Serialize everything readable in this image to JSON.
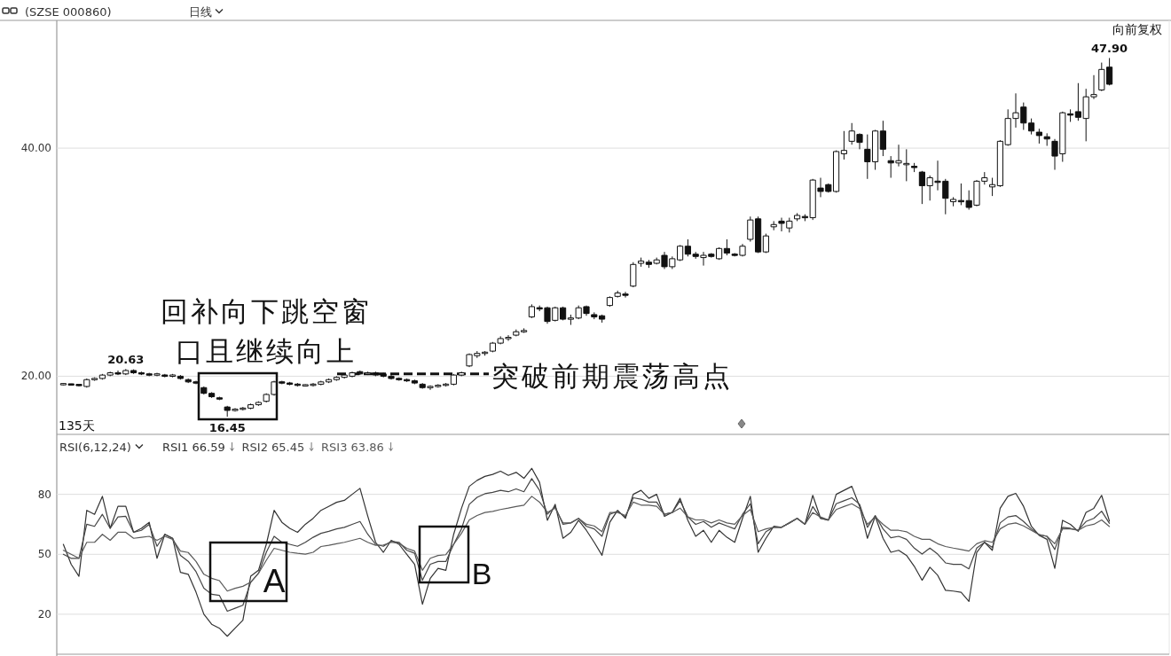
{
  "chart_data": [
    {
      "type": "candlestick",
      "title": "(SZSE 000860)",
      "subtitle": "日线",
      "categories": [
        null,
        null,
        null,
        null,
        null,
        null,
        null,
        null,
        null,
        null,
        null,
        null,
        null,
        null,
        null,
        null,
        null,
        null,
        null,
        null,
        null,
        null,
        null,
        null,
        null,
        null,
        null,
        null,
        null,
        null,
        null,
        null,
        null,
        null,
        null,
        null,
        null,
        null,
        null,
        null,
        null,
        null,
        null,
        null,
        null,
        null,
        null,
        null,
        null,
        null,
        null,
        null,
        null,
        null,
        null,
        null,
        null,
        null,
        null,
        null,
        null,
        null,
        null,
        null,
        null,
        null,
        null,
        null,
        null,
        null,
        null,
        null,
        null,
        null,
        null,
        null,
        null,
        null,
        null,
        null,
        null,
        null,
        null,
        null,
        null,
        null,
        null,
        null,
        null,
        null,
        null,
        null,
        null,
        null,
        null,
        null,
        null,
        null,
        null,
        null,
        null,
        null,
        null,
        null,
        null,
        null,
        null,
        null,
        null,
        null,
        null,
        null,
        null,
        null,
        null,
        null,
        null,
        null,
        null,
        null,
        null,
        null,
        null,
        null,
        null,
        null,
        null,
        null,
        null,
        null,
        null,
        null,
        null,
        null,
        null
      ],
      "ohlc": [
        [
          19.3,
          19.4,
          19.2,
          19.3
        ],
        [
          19.3,
          19.35,
          19.2,
          19.25
        ],
        [
          19.25,
          19.3,
          19.1,
          19.2
        ],
        [
          19.1,
          19.8,
          19.0,
          19.7
        ],
        [
          19.7,
          19.9,
          19.6,
          19.8
        ],
        [
          19.8,
          20.2,
          19.7,
          20.1
        ],
        [
          20.1,
          20.4,
          20.0,
          20.3
        ],
        [
          20.3,
          20.5,
          20.1,
          20.2
        ],
        [
          20.2,
          20.63,
          20.1,
          20.5
        ],
        [
          20.5,
          20.6,
          20.2,
          20.3
        ],
        [
          20.3,
          20.4,
          20.1,
          20.2
        ],
        [
          20.2,
          20.3,
          20.0,
          20.1
        ],
        [
          20.1,
          20.3,
          20.0,
          20.2
        ],
        [
          20.1,
          20.2,
          19.9,
          20.0
        ],
        [
          20.0,
          20.2,
          19.9,
          20.1
        ],
        [
          20.0,
          20.1,
          19.7,
          19.8
        ],
        [
          19.7,
          19.8,
          19.4,
          19.5
        ],
        [
          19.5,
          19.6,
          19.3,
          19.4
        ],
        [
          19.0,
          19.1,
          18.4,
          18.5
        ],
        [
          18.5,
          18.6,
          18.1,
          18.2
        ],
        [
          18.1,
          18.2,
          17.9,
          18.0
        ],
        [
          17.3,
          17.4,
          16.45,
          17.0
        ],
        [
          17.0,
          17.2,
          16.9,
          17.1
        ],
        [
          17.1,
          17.3,
          17.0,
          17.2
        ],
        [
          17.2,
          17.6,
          17.1,
          17.5
        ],
        [
          17.5,
          17.8,
          17.4,
          17.7
        ],
        [
          17.8,
          18.5,
          17.7,
          18.4
        ],
        [
          18.4,
          19.6,
          18.3,
          19.5
        ],
        [
          19.5,
          19.6,
          19.3,
          19.4
        ],
        [
          19.4,
          19.5,
          19.2,
          19.3
        ],
        [
          19.3,
          19.4,
          19.1,
          19.2
        ],
        [
          19.2,
          19.3,
          19.1,
          19.2
        ],
        [
          19.2,
          19.4,
          19.1,
          19.3
        ],
        [
          19.3,
          19.6,
          19.2,
          19.5
        ],
        [
          19.5,
          19.8,
          19.4,
          19.7
        ],
        [
          19.7,
          20.0,
          19.6,
          19.9
        ],
        [
          19.9,
          20.2,
          19.8,
          20.1
        ],
        [
          20.0,
          20.4,
          19.9,
          20.3
        ],
        [
          20.4,
          20.5,
          20.1,
          20.2
        ],
        [
          20.2,
          20.4,
          20.1,
          20.3
        ],
        [
          20.3,
          20.4,
          20.0,
          20.1
        ],
        [
          20.2,
          20.3,
          19.9,
          20.0
        ],
        [
          20.0,
          20.1,
          19.7,
          19.8
        ],
        [
          19.8,
          19.9,
          19.6,
          19.7
        ],
        [
          19.7,
          19.8,
          19.5,
          19.6
        ],
        [
          19.6,
          19.7,
          19.3,
          19.4
        ],
        [
          19.3,
          19.4,
          18.9,
          19.0
        ],
        [
          19.0,
          19.2,
          18.8,
          19.1
        ],
        [
          19.1,
          19.3,
          19.0,
          19.2
        ],
        [
          19.2,
          19.4,
          19.1,
          19.3
        ],
        [
          19.3,
          20.2,
          19.2,
          20.1
        ],
        [
          20.1,
          20.4,
          20.0,
          20.3
        ],
        [
          20.9,
          22.0,
          20.8,
          21.9
        ],
        [
          21.8,
          22.2,
          21.6,
          22.0
        ],
        [
          22.0,
          22.2,
          21.8,
          22.1
        ],
        [
          22.2,
          23.0,
          22.1,
          22.9
        ],
        [
          22.9,
          23.5,
          22.8,
          23.3
        ],
        [
          23.3,
          23.6,
          23.1,
          23.4
        ],
        [
          23.6,
          24.1,
          23.5,
          23.9
        ],
        [
          23.9,
          24.2,
          23.8,
          24.0
        ],
        [
          25.2,
          26.3,
          25.1,
          26.1
        ],
        [
          26.0,
          26.2,
          25.7,
          25.9
        ],
        [
          26.0,
          26.1,
          24.6,
          24.8
        ],
        [
          24.9,
          26.1,
          24.8,
          26.0
        ],
        [
          26.0,
          26.1,
          24.9,
          25.0
        ],
        [
          25.0,
          25.4,
          24.5,
          25.1
        ],
        [
          25.1,
          26.2,
          25.0,
          26.0
        ],
        [
          26.1,
          26.2,
          25.3,
          25.5
        ],
        [
          25.4,
          25.6,
          25.0,
          25.2
        ],
        [
          25.3,
          25.4,
          24.7,
          25.0
        ],
        [
          26.2,
          27.0,
          26.1,
          26.9
        ],
        [
          27.0,
          27.5,
          26.9,
          27.3
        ],
        [
          27.2,
          27.4,
          26.9,
          27.1
        ],
        [
          27.9,
          30.0,
          27.8,
          29.8
        ],
        [
          29.9,
          30.4,
          29.6,
          30.1
        ],
        [
          30.0,
          30.2,
          29.5,
          29.8
        ],
        [
          29.9,
          30.4,
          29.8,
          30.2
        ],
        [
          30.6,
          30.9,
          29.4,
          29.6
        ],
        [
          29.6,
          30.5,
          29.4,
          30.3
        ],
        [
          30.2,
          31.5,
          30.1,
          31.4
        ],
        [
          31.4,
          32.0,
          30.5,
          30.7
        ],
        [
          30.7,
          30.9,
          30.3,
          30.5
        ],
        [
          30.4,
          30.9,
          29.7,
          30.6
        ],
        [
          30.7,
          30.8,
          30.4,
          30.5
        ],
        [
          30.3,
          31.3,
          30.2,
          31.2
        ],
        [
          31.2,
          32.0,
          30.6,
          30.8
        ],
        [
          30.7,
          30.8,
          30.5,
          30.6
        ],
        [
          30.6,
          31.6,
          30.5,
          31.4
        ],
        [
          32.0,
          34.0,
          31.8,
          33.7
        ],
        [
          33.8,
          34.0,
          30.8,
          30.9
        ],
        [
          30.9,
          32.5,
          30.8,
          32.3
        ],
        [
          33.1,
          33.6,
          32.8,
          33.3
        ],
        [
          33.6,
          33.9,
          32.7,
          33.4
        ],
        [
          33.0,
          33.9,
          32.6,
          33.6
        ],
        [
          33.8,
          34.3,
          33.6,
          34.1
        ],
        [
          34.0,
          34.2,
          33.6,
          33.9
        ],
        [
          33.9,
          37.3,
          33.7,
          37.2
        ],
        [
          36.5,
          37.4,
          35.7,
          36.2
        ],
        [
          36.8,
          36.9,
          36.1,
          36.2
        ],
        [
          36.2,
          39.8,
          36.1,
          39.7
        ],
        [
          39.5,
          41.5,
          39.0,
          39.8
        ],
        [
          40.6,
          42.2,
          40.3,
          41.5
        ],
        [
          41.2,
          41.3,
          39.9,
          40.5
        ],
        [
          39.9,
          41.2,
          37.3,
          38.8
        ],
        [
          38.8,
          41.6,
          38.1,
          41.5
        ],
        [
          41.5,
          42.4,
          39.3,
          39.9
        ],
        [
          38.9,
          39.3,
          37.4,
          38.7
        ],
        [
          38.7,
          40.3,
          38.4,
          38.9
        ],
        [
          38.6,
          39.9,
          37.1,
          38.6
        ],
        [
          38.4,
          38.7,
          37.9,
          38.3
        ],
        [
          37.9,
          38.0,
          35.1,
          36.7
        ],
        [
          36.7,
          37.6,
          35.4,
          37.4
        ],
        [
          37.1,
          38.9,
          36.3,
          37.0
        ],
        [
          37.1,
          37.3,
          34.2,
          35.6
        ],
        [
          35.3,
          35.7,
          34.9,
          35.5
        ],
        [
          35.4,
          36.9,
          35.0,
          35.3
        ],
        [
          35.4,
          36.3,
          34.6,
          34.8
        ],
        [
          35.0,
          37.2,
          34.9,
          37.1
        ],
        [
          37.1,
          37.9,
          36.8,
          37.4
        ],
        [
          36.6,
          37.4,
          35.8,
          36.8
        ],
        [
          36.7,
          40.7,
          36.6,
          40.6
        ],
        [
          40.3,
          43.4,
          40.2,
          42.6
        ],
        [
          42.6,
          44.8,
          41.8,
          43.1
        ],
        [
          43.6,
          44.0,
          41.6,
          42.2
        ],
        [
          42.2,
          42.6,
          41.2,
          41.5
        ],
        [
          41.4,
          41.7,
          40.4,
          41.1
        ],
        [
          41.0,
          41.3,
          40.2,
          40.8
        ],
        [
          40.6,
          40.8,
          38.1,
          39.3
        ],
        [
          39.5,
          43.2,
          38.8,
          43.1
        ],
        [
          43.0,
          43.4,
          42.3,
          42.9
        ],
        [
          43.2,
          45.7,
          42.4,
          42.7
        ],
        [
          42.6,
          45.2,
          40.6,
          44.5
        ],
        [
          44.5,
          46.4,
          44.3,
          44.7
        ],
        [
          45.1,
          47.5,
          45.0,
          46.9
        ],
        [
          47.1,
          47.9,
          45.5,
          45.6
        ]
      ],
      "color": "#111111",
      "ylim": [
        14.9,
        51.2
      ],
      "yticks": [
        {
          "value": 20,
          "label": "20.00"
        },
        {
          "value": 40,
          "label": "40.00"
        }
      ],
      "grid": "y",
      "annotations": [
        {
          "text": "20.63",
          "y": 20.63
        },
        {
          "text": "16.45",
          "y": 16.45
        },
        {
          "text": "47.90",
          "y": 47.9
        },
        "135天",
        "向前复权",
        "回补向下跳空窗口且继续向上"
      ],
      "ref_lines": [
        {
          "axis": "y",
          "value": 20.2,
          "label": "突破前期震荡高点",
          "line_style": "dashed",
          "color": "#111111"
        }
      ]
    },
    {
      "type": "line",
      "title": "RSI(6,12,24)",
      "categories": [
        null,
        null,
        null,
        null,
        null,
        null,
        null,
        null,
        null,
        null,
        null,
        null,
        null,
        null,
        null,
        null,
        null,
        null,
        null,
        null,
        null,
        null,
        null,
        null,
        null,
        null,
        null,
        null,
        null,
        null,
        null,
        null,
        null,
        null,
        null,
        null,
        null,
        null,
        null,
        null,
        null,
        null,
        null,
        null,
        null,
        null,
        null,
        null,
        null,
        null,
        null,
        null,
        null,
        null,
        null,
        null,
        null,
        null,
        null,
        null,
        null,
        null,
        null,
        null,
        null,
        null,
        null,
        null,
        null,
        null,
        null,
        null,
        null,
        null,
        null,
        null,
        null,
        null,
        null,
        null,
        null,
        null,
        null,
        null,
        null,
        null,
        null,
        null,
        null,
        null,
        null,
        null,
        null,
        null,
        null,
        null,
        null,
        null,
        null,
        null,
        null,
        null,
        null,
        null,
        null,
        null,
        null,
        null,
        null,
        null,
        null,
        null,
        null,
        null,
        null,
        null,
        null,
        null,
        null,
        null,
        null,
        null,
        null,
        null,
        null,
        null,
        null,
        null,
        null,
        null,
        null,
        null,
        null,
        null,
        null
      ],
      "series": [
        {
          "name": "RSI1 66.59",
          "color": "#333333",
          "values": [
            55,
            45,
            39,
            72,
            70,
            79,
            63,
            74,
            74,
            61,
            63,
            66,
            48,
            60,
            58,
            41,
            40,
            31,
            20,
            15,
            13,
            9,
            13,
            17,
            39,
            42,
            55,
            72,
            66,
            63,
            61,
            65,
            68,
            72,
            74,
            76,
            77,
            80,
            83,
            69,
            56,
            51,
            57,
            55,
            50,
            45,
            25,
            38,
            43,
            42,
            60,
            73,
            84,
            87,
            89,
            90,
            91.6,
            89.5,
            91,
            88,
            93,
            86,
            67,
            75,
            58,
            61,
            67,
            62,
            56,
            49.5,
            66,
            72,
            68,
            80,
            82,
            78,
            80,
            69,
            71,
            78,
            67,
            59,
            62,
            56,
            62,
            58.5,
            56,
            68,
            79,
            51,
            58,
            64,
            63.5,
            65.7,
            68,
            65,
            79.5,
            68,
            67,
            80,
            82,
            84,
            74,
            58,
            69,
            58,
            51,
            52,
            49.5,
            44,
            37,
            43.5,
            39.5,
            32,
            31.6,
            31,
            26.4,
            51,
            56,
            52,
            73,
            79,
            80.5,
            74,
            64,
            59.5,
            57.5,
            43,
            67,
            65,
            61.5,
            71,
            73,
            79.5,
            66.6
          ]
        },
        {
          "name": "RSI2 65.45",
          "color": "#444444",
          "values": [
            50,
            48,
            48,
            65,
            64,
            70,
            63,
            68.7,
            69,
            61,
            62,
            65,
            54,
            60,
            58,
            49.5,
            46.5,
            41.3,
            33,
            30,
            29.4,
            21.5,
            23,
            24.5,
            36,
            40.5,
            51,
            59,
            56,
            55,
            54,
            56,
            58.5,
            60.5,
            61.5,
            62.7,
            63.5,
            65,
            66.4,
            60,
            55,
            54,
            56.5,
            56,
            52,
            50.5,
            37,
            45,
            46.4,
            46.4,
            55,
            62.7,
            75,
            78.5,
            80.3,
            81,
            82,
            81.3,
            82.7,
            81.3,
            87.9,
            82,
            70,
            73.9,
            65,
            65.7,
            68,
            64,
            62.7,
            59,
            70,
            71.6,
            68.7,
            78.3,
            77.6,
            76.1,
            76.1,
            70,
            70.9,
            76.8,
            68.7,
            65,
            66.4,
            63.5,
            65.7,
            64.2,
            62.7,
            70,
            75.3,
            55.3,
            61.3,
            63.5,
            63.5,
            65.7,
            68,
            65,
            73.9,
            68,
            67.2,
            75.3,
            76.8,
            78.3,
            75,
            63.5,
            69.4,
            62.7,
            58.3,
            59,
            57.5,
            53.1,
            50.1,
            53.1,
            50.1,
            45.7,
            45,
            45,
            42.7,
            53.1,
            56,
            53.5,
            65.7,
            68.7,
            69.4,
            66.4,
            62.7,
            59.8,
            59,
            52.4,
            63.5,
            63,
            62,
            66.4,
            68,
            71.6,
            65.5
          ]
        },
        {
          "name": "RSI3 63.86",
          "color": "#5a5a5a",
          "values": [
            52,
            50,
            48,
            56,
            56,
            60,
            57,
            61,
            61,
            58,
            58.5,
            59,
            57,
            59,
            57.5,
            51.6,
            50.9,
            46.4,
            40,
            38,
            36.8,
            31.6,
            33,
            34,
            36,
            40.5,
            47,
            53,
            52,
            51,
            50.5,
            50.1,
            51,
            53.9,
            54.5,
            55.3,
            56,
            57,
            58,
            56,
            54.5,
            54.6,
            56,
            55.5,
            53,
            51.6,
            42,
            48,
            49.4,
            49.8,
            55,
            60.5,
            67.2,
            69.4,
            70.9,
            71.5,
            72.4,
            73.1,
            73.9,
            74.6,
            79,
            76.1,
            71,
            73.1,
            65.7,
            65.7,
            68,
            65,
            64.2,
            61.3,
            70.9,
            70.9,
            69.4,
            76.1,
            74.6,
            74.6,
            74,
            70,
            70.9,
            73.1,
            68.7,
            67.2,
            67.2,
            65.7,
            67.2,
            65.7,
            65,
            69.4,
            72.4,
            61.3,
            62.7,
            63.5,
            63.5,
            65.7,
            68,
            65,
            70.9,
            68.7,
            67.2,
            72.4,
            73.9,
            75.3,
            73,
            65,
            68.7,
            65,
            62,
            62,
            61.3,
            59,
            57.5,
            57.5,
            55.3,
            53.9,
            53.1,
            52.4,
            51.6,
            55.3,
            56.8,
            56,
            62.7,
            65,
            65.7,
            64.2,
            62,
            59.8,
            59,
            55.3,
            62.7,
            62.7,
            62,
            64.2,
            65,
            67.2,
            63.9
          ]
        }
      ],
      "ylim": [
        0,
        110
      ],
      "yticks": [
        20,
        50,
        80
      ],
      "grid": "y",
      "annotations": [
        "A",
        "B"
      ]
    }
  ]
}
